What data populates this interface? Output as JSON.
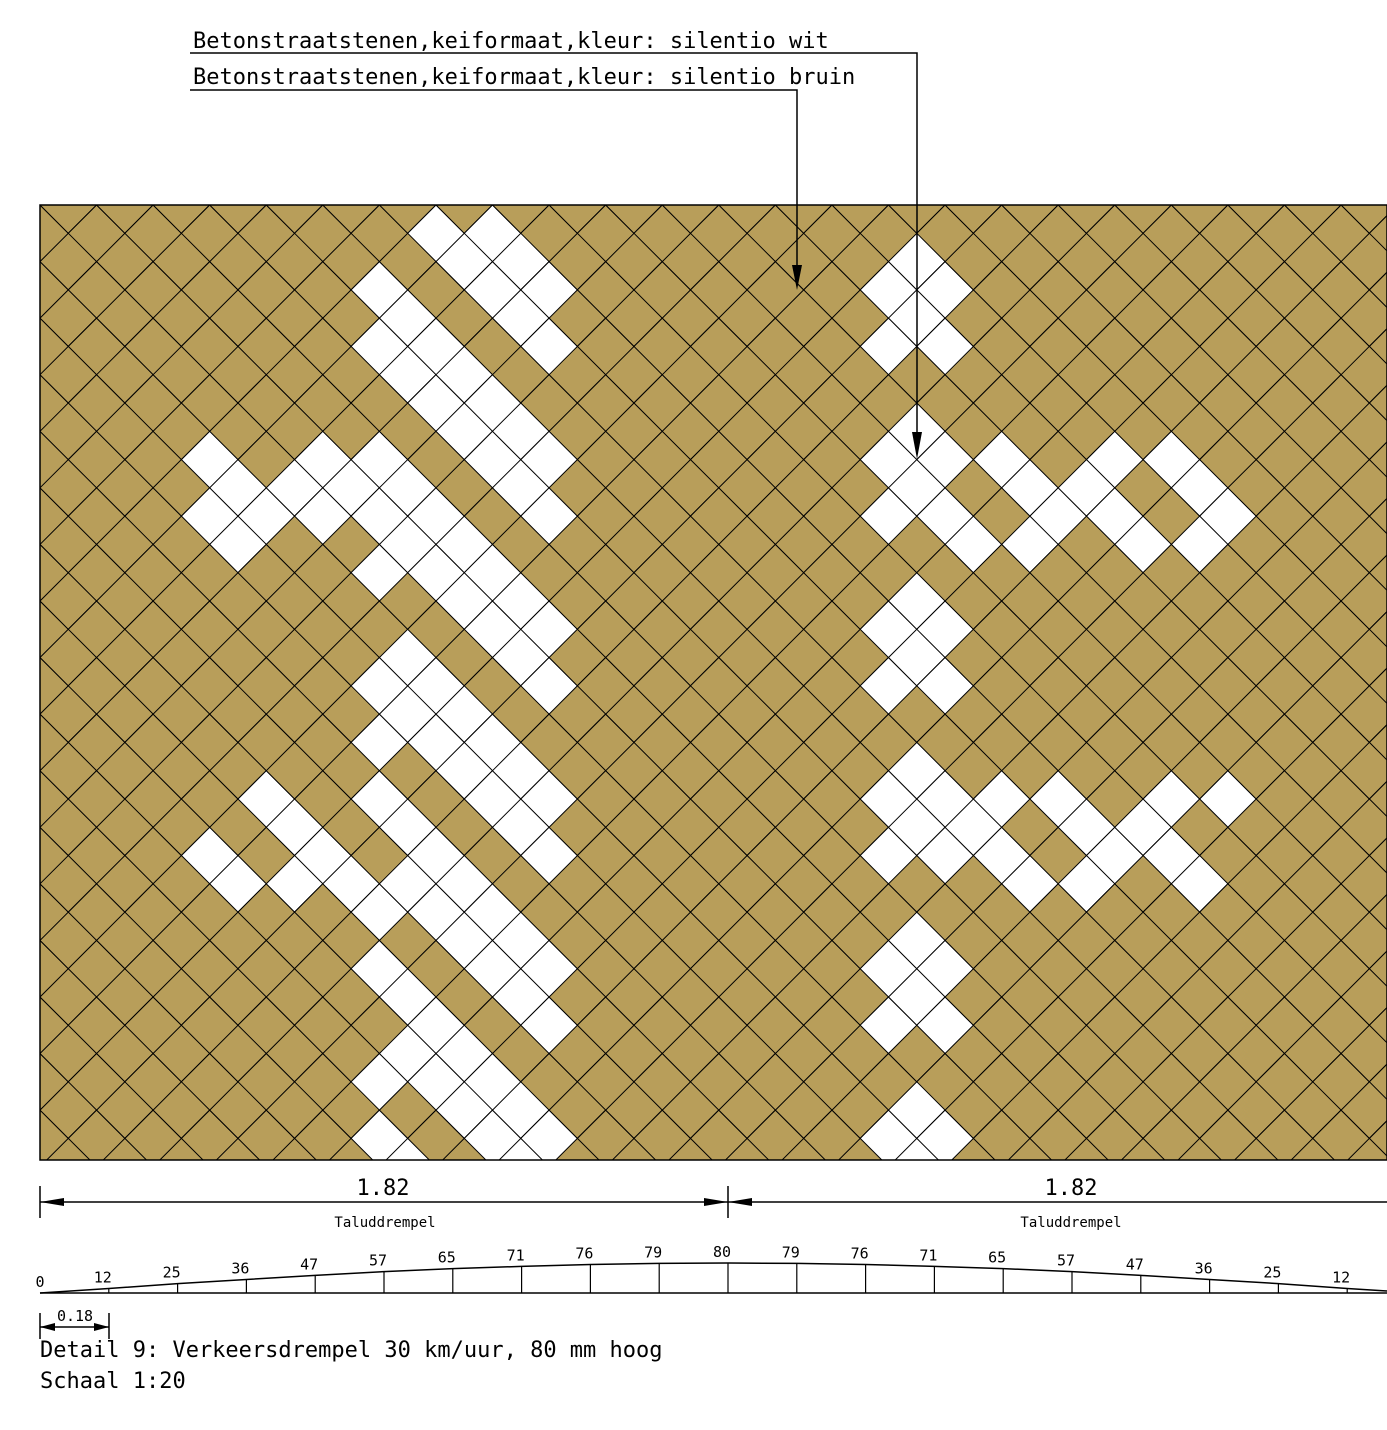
{
  "labels": {
    "white_stone": "Betonstraatstenen,keiformaat,kleur: silentio wit",
    "brown_stone": "Betonstraatstenen,keiformaat,kleur: silentio bruin"
  },
  "colors": {
    "brown": "#b89e5a",
    "white": "#ffffff",
    "line": "#000000"
  },
  "pattern": "herringbone-45deg",
  "dimensions": {
    "left_value": "1.82",
    "left_label": "Taluddrempel",
    "right_value": "1.82",
    "right_label": "Taluddrempel",
    "spacing": "0.18"
  },
  "profile_heights": [
    "0",
    "12",
    "25",
    "36",
    "47",
    "57",
    "65",
    "71",
    "76",
    "79",
    "80",
    "79",
    "76",
    "71",
    "65",
    "57",
    "47",
    "36",
    "25",
    "12"
  ],
  "caption": {
    "line1": "Detail 9: Verkeersdrempel 30 km/uur, 80 mm hoog",
    "line2": "Schaal 1:20"
  }
}
